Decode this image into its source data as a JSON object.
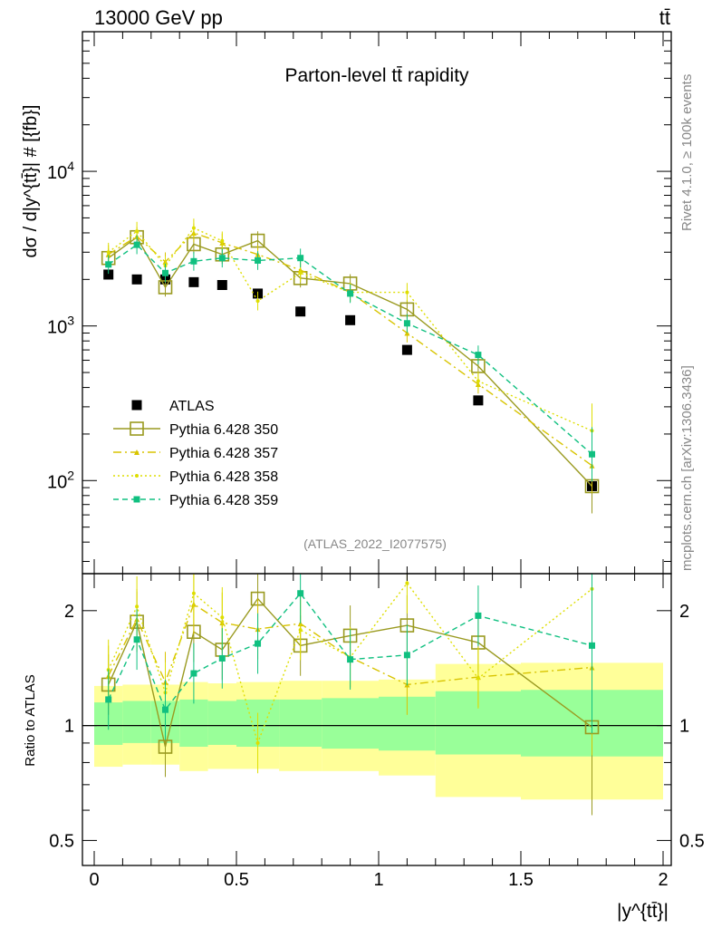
{
  "header": {
    "left_label": "13000 GeV pp",
    "right_label": "tt̄"
  },
  "side_text": {
    "rivet": "Rivet 4.1.0, ≥ 100k events",
    "mcplots": "mcplots.cern.ch [arXiv:1306.3436]"
  },
  "chart_data": [
    {
      "type": "line",
      "panel": "main",
      "title": "Parton-level tt̄ rapidity",
      "xlabel": "|y^{tt̄}|",
      "ylabel": "dσ / d|y^{tt̄}| # [{fb}]",
      "yscale": "log",
      "xlim": [
        -0.05,
        2.0
      ],
      "ylim": [
        25,
        80000
      ],
      "x_ticks": [
        "0",
        "0.5",
        "1",
        "1.5",
        "2"
      ],
      "y_ticks": [
        "10^2",
        "10^3",
        "10^4"
      ],
      "analysis_label": "(ATLAS_2022_I2077575)",
      "x": [
        0.05,
        0.15,
        0.25,
        0.35,
        0.45,
        0.575,
        0.725,
        0.9,
        1.1,
        1.35,
        1.75
      ],
      "series": [
        {
          "name": "ATLAS",
          "style": "data",
          "color": "#000000",
          "values": [
            2150,
            2000,
            2000,
            1920,
            1840,
            1620,
            1240,
            1090,
            700,
            330,
            92
          ]
        },
        {
          "name": "Pythia 6.428 350",
          "style": "solid-open-square",
          "color": "#9a9a20",
          "values": [
            2750,
            3750,
            1780,
            3380,
            2900,
            3560,
            2040,
            1880,
            1280,
            550,
            92
          ]
        },
        {
          "name": "Pythia 6.428 357",
          "style": "dashdot-triangle",
          "color": "#d8c400",
          "values": [
            2900,
            3800,
            2600,
            4000,
            3450,
            2900,
            2300,
            1650,
            900,
            420,
            125
          ]
        },
        {
          "name": "Pythia 6.428 358",
          "style": "dotted-dot",
          "color": "#dede00",
          "values": [
            3000,
            4100,
            2450,
            4300,
            3550,
            1450,
            2200,
            1650,
            1650,
            440,
            210
          ]
        },
        {
          "name": "Pythia 6.428 359",
          "style": "dashed-square",
          "color": "#10c080",
          "values": [
            2500,
            3350,
            2200,
            2620,
            2750,
            2650,
            2750,
            1620,
            1040,
            650,
            148
          ]
        }
      ]
    },
    {
      "type": "line",
      "panel": "ratio",
      "ylabel": "Ratio to ATLAS",
      "yscale": "log",
      "ylim": [
        0.43,
        2.5
      ],
      "y_ticks": [
        "0.5",
        "1",
        "2"
      ],
      "x": [
        0.05,
        0.15,
        0.25,
        0.35,
        0.45,
        0.575,
        0.725,
        0.9,
        1.1,
        1.35,
        1.75
      ],
      "bands": {
        "bin_edges": [
          0,
          0.1,
          0.2,
          0.3,
          0.4,
          0.5,
          0.65,
          0.8,
          1.0,
          1.2,
          1.5,
          2.0
        ],
        "inner_low": [
          0.89,
          0.9,
          0.9,
          0.88,
          0.89,
          0.88,
          0.88,
          0.87,
          0.86,
          0.84,
          0.83
        ],
        "inner_high": [
          1.15,
          1.16,
          1.16,
          1.17,
          1.16,
          1.17,
          1.17,
          1.18,
          1.19,
          1.23,
          1.24
        ],
        "outer_low": [
          0.78,
          0.79,
          0.79,
          0.76,
          0.77,
          0.77,
          0.76,
          0.76,
          0.74,
          0.65,
          0.64
        ],
        "outer_high": [
          1.27,
          1.28,
          1.28,
          1.3,
          1.29,
          1.3,
          1.31,
          1.31,
          1.32,
          1.45,
          1.46
        ],
        "inner_color": "#99ff99",
        "outer_color": "#ffff99"
      },
      "series": [
        {
          "name": "Pythia 6.428 350",
          "values": [
            1.28,
            1.87,
            0.88,
            1.76,
            1.58,
            2.15,
            1.62,
            1.72,
            1.83,
            1.65,
            0.99
          ]
        },
        {
          "name": "Pythia 6.428 357",
          "values": [
            1.35,
            1.9,
            1.3,
            2.08,
            1.86,
            1.79,
            1.85,
            1.51,
            1.28,
            1.34,
            1.42
          ]
        },
        {
          "name": "Pythia 6.428 358",
          "values": [
            1.4,
            2.05,
            1.22,
            2.22,
            1.92,
            0.9,
            1.78,
            1.51,
            2.36,
            1.33,
            2.28
          ]
        },
        {
          "name": "Pythia 6.428 359",
          "values": [
            1.17,
            1.68,
            1.1,
            1.37,
            1.5,
            1.64,
            2.22,
            1.49,
            1.53,
            1.94,
            1.62
          ]
        }
      ]
    }
  ]
}
